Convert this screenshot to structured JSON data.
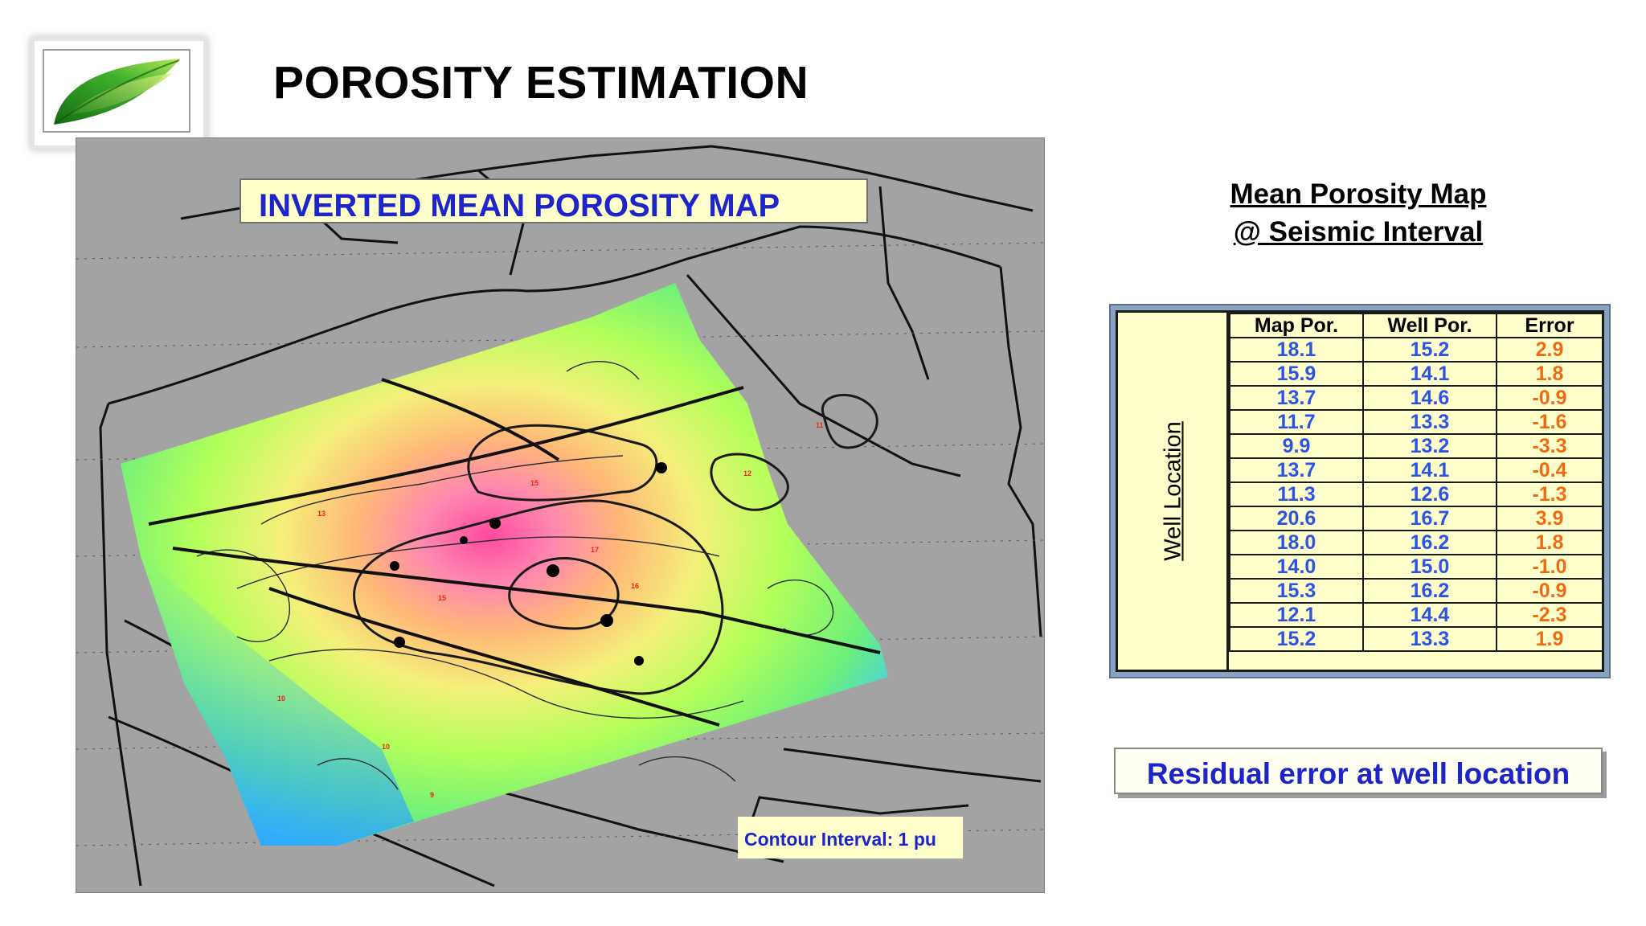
{
  "header": {
    "title": "POROSITY ESTIMATION"
  },
  "logo": {
    "icon": "leaf-icon",
    "colors": [
      "#1f8a1f",
      "#8cd63a"
    ]
  },
  "map": {
    "title": "INVERTED MEAN POROSITY MAP",
    "contour_interval": "Contour Interval: 1 pu",
    "colors": {
      "background": "#a3a3a3",
      "low": "#3cc8ff",
      "mid": "#a0ff50",
      "high": "#ff88b8",
      "peak": "#ff4aa0"
    }
  },
  "side_panel": {
    "title_line1": "Mean Porosity Map ",
    "title_line2": "@ Seismic Interval"
  },
  "table": {
    "row_group_label": "Well Location",
    "headers": [
      "Map Por.",
      "Well Por.",
      "Error"
    ],
    "rows": [
      [
        "18.1",
        "15.2",
        "2.9"
      ],
      [
        "15.9",
        "14.1",
        "1.8"
      ],
      [
        "13.7",
        "14.6",
        "-0.9"
      ],
      [
        "11.7",
        "13.3",
        "-1.6"
      ],
      [
        "9.9",
        "13.2",
        "-3.3"
      ],
      [
        "13.7",
        "14.1",
        "-0.4"
      ],
      [
        "11.3",
        "12.6",
        "-1.3"
      ],
      [
        "20.6",
        "16.7",
        "3.9"
      ],
      [
        "18.0",
        "16.2",
        "1.8"
      ],
      [
        "14.0",
        "15.0",
        "-1.0"
      ],
      [
        "15.3",
        "16.2",
        "-0.9"
      ],
      [
        "12.1",
        "14.4",
        "-2.3"
      ],
      [
        "15.2",
        "13.3",
        "1.9"
      ]
    ]
  },
  "residual": {
    "label": "Residual error at well location"
  }
}
